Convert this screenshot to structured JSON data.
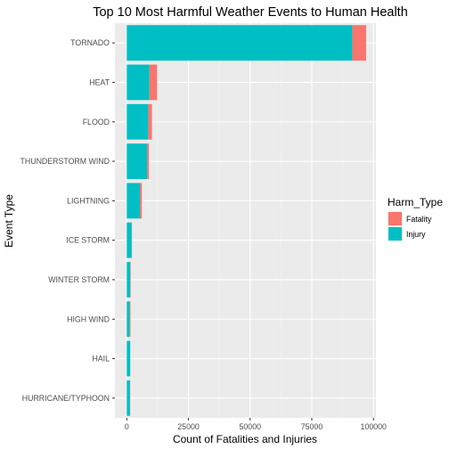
{
  "chart_data": {
    "type": "bar",
    "orientation": "horizontal",
    "stacked": true,
    "title": "Top 10 Most Harmful Weather Events to Human Health",
    "xlabel": "Count of Fatalities and Injuries",
    "ylabel": "Event Type",
    "xlim": [
      -4800,
      101000
    ],
    "xticks": [
      0,
      25000,
      50000,
      75000,
      100000
    ],
    "xtick_labels": [
      "0",
      "25000",
      "50000",
      "75000",
      "100000"
    ],
    "grid": true,
    "legend_position": "right",
    "legend_title": "Harm_Type",
    "categories": [
      "TORNADO",
      "HEAT",
      "FLOOD",
      "THUNDERSTORM WIND",
      "LIGHTNING",
      "ICE STORM",
      "WINTER STORM",
      "HIGH WIND",
      "HAIL",
      "HURRICANE/TYPHOON"
    ],
    "series": [
      {
        "name": "Injury",
        "color": "#00BFC4",
        "values": [
          91400,
          9200,
          8700,
          8300,
          5300,
          2000,
          1400,
          1200,
          1400,
          1300
        ]
      },
      {
        "name": "Fatality",
        "color": "#F8766D",
        "values": [
          5600,
          3100,
          1500,
          700,
          800,
          100,
          200,
          300,
          20,
          100
        ]
      }
    ],
    "bar_stack_order": [
      "Fatality",
      "Injury"
    ]
  }
}
